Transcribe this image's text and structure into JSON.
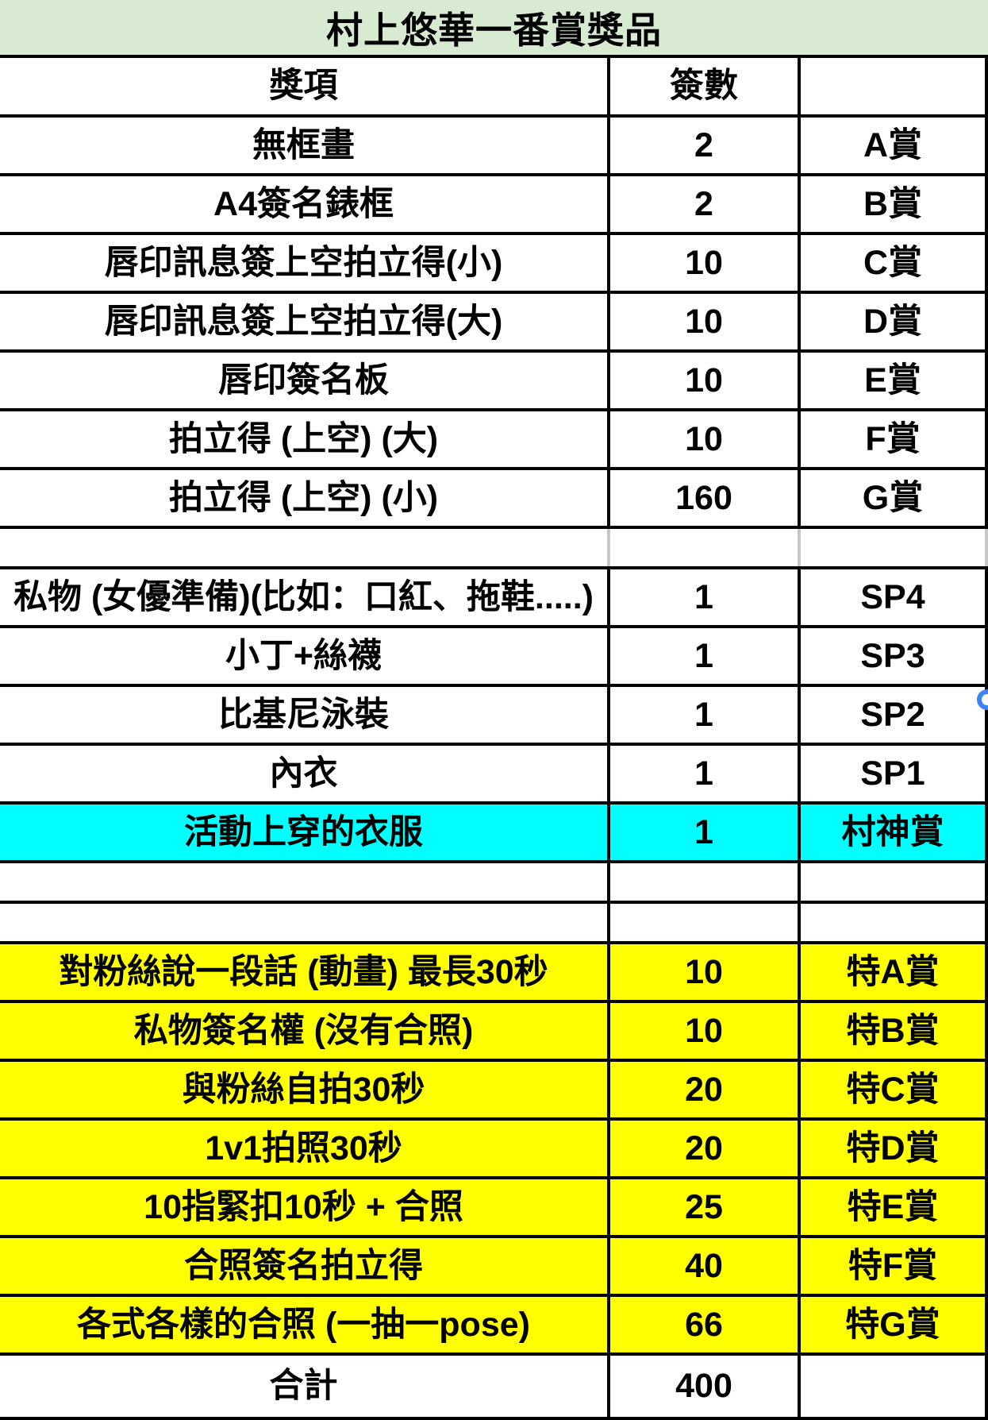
{
  "title": "村上悠華一番賞獎品",
  "header": {
    "prize": "獎項",
    "count": "簽數",
    "tier": ""
  },
  "rows": [
    {
      "prize": "無框畫",
      "count": "2",
      "tier": "A賞",
      "style": "normal"
    },
    {
      "prize": "A4簽名錶框",
      "count": "2",
      "tier": "B賞",
      "style": "normal"
    },
    {
      "prize": "唇印訊息簽上空拍立得(小)",
      "count": "10",
      "tier": "C賞",
      "style": "normal"
    },
    {
      "prize": "唇印訊息簽上空拍立得(大)",
      "count": "10",
      "tier": "D賞",
      "style": "normal"
    },
    {
      "prize": "唇印簽名板",
      "count": "10",
      "tier": "E賞",
      "style": "normal"
    },
    {
      "prize": "拍立得 (上空) (大)",
      "count": "10",
      "tier": "F賞",
      "style": "normal"
    },
    {
      "prize": "拍立得 (上空) (小)",
      "count": "160",
      "tier": "G賞",
      "style": "normal"
    },
    {
      "prize": "",
      "count": "",
      "tier": "",
      "style": "empty-light"
    },
    {
      "prize": "私物 (女優準備)(比如：口紅、拖鞋.....)",
      "count": "1",
      "tier": "SP4",
      "style": "normal"
    },
    {
      "prize": "小丁+絲襪",
      "count": "1",
      "tier": "SP3",
      "style": "normal"
    },
    {
      "prize": "比基尼泳裝",
      "count": "1",
      "tier": "SP2",
      "style": "normal"
    },
    {
      "prize": "內衣",
      "count": "1",
      "tier": "SP1",
      "style": "normal"
    },
    {
      "prize": "活動上穿的衣服",
      "count": "1",
      "tier": "村神賞",
      "style": "cyan"
    },
    {
      "prize": "",
      "count": "",
      "tier": "",
      "style": "empty"
    },
    {
      "prize": "",
      "count": "",
      "tier": "",
      "style": "empty"
    },
    {
      "prize": "對粉絲說一段話 (動畫)  最長30秒",
      "count": "10",
      "tier": "特A賞",
      "style": "yellow"
    },
    {
      "prize": "私物簽名權  (沒有合照)",
      "count": "10",
      "tier": "特B賞",
      "style": "yellow"
    },
    {
      "prize": "與粉絲自拍30秒",
      "count": "20",
      "tier": "特C賞",
      "style": "yellow"
    },
    {
      "prize": "1v1拍照30秒",
      "count": "20",
      "tier": "特D賞",
      "style": "yellow"
    },
    {
      "prize": "10指緊扣10秒 + 合照",
      "count": "25",
      "tier": "特E賞",
      "style": "yellow"
    },
    {
      "prize": "合照簽名拍立得",
      "count": "40",
      "tier": "特F賞",
      "style": "yellow"
    },
    {
      "prize": "各式各樣的合照 (一抽一pose)",
      "count": "66",
      "tier": "特G賞",
      "style": "yellow"
    },
    {
      "prize": "合計",
      "count": "400",
      "tier": "",
      "style": "total"
    }
  ],
  "colors": {
    "title_bg": "#d9ead3",
    "highlight_cyan": "#00ffff",
    "highlight_yellow": "#ffff00",
    "selection_handle_blue": "#3d85f4",
    "grid_line": "#000000"
  }
}
